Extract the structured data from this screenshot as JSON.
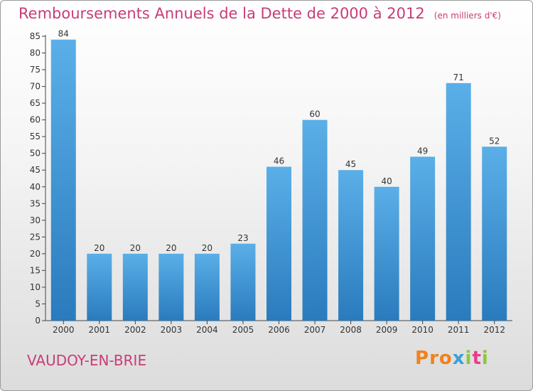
{
  "header": {
    "title": "Remboursements Annuels de la Dette de 2000 à 2012",
    "unit": "(en milliers d'€)"
  },
  "footer": {
    "place": "VAUDOY-EN-BRIE",
    "logo_letters": [
      "P",
      "r",
      "o",
      "x",
      "i",
      "t",
      "i"
    ]
  },
  "colors": {
    "title": "#c83c78",
    "bar_top": "#5aafe8",
    "bar_bottom": "#2a7bbd",
    "logo": [
      "#f0821e",
      "#f0821e",
      "#f0821e",
      "#3aa0d8",
      "#8cc63e",
      "#e83c8c",
      "#8cc63e"
    ]
  },
  "chart_data": {
    "type": "bar",
    "title": "Remboursements Annuels de la Dette de 2000 à 2012",
    "subtitle": "(en milliers d'€)",
    "categories": [
      "2000",
      "2001",
      "2002",
      "2003",
      "2004",
      "2005",
      "2006",
      "2007",
      "2008",
      "2009",
      "2010",
      "2011",
      "2012"
    ],
    "values": [
      84,
      20,
      20,
      20,
      20,
      23,
      46,
      60,
      45,
      40,
      49,
      71,
      52
    ],
    "ylim": [
      0,
      85
    ],
    "yticks": [
      0,
      5,
      10,
      15,
      20,
      25,
      30,
      35,
      40,
      45,
      50,
      55,
      60,
      65,
      70,
      75,
      80,
      85
    ],
    "grid": false,
    "data_labels": true,
    "legend": false
  }
}
